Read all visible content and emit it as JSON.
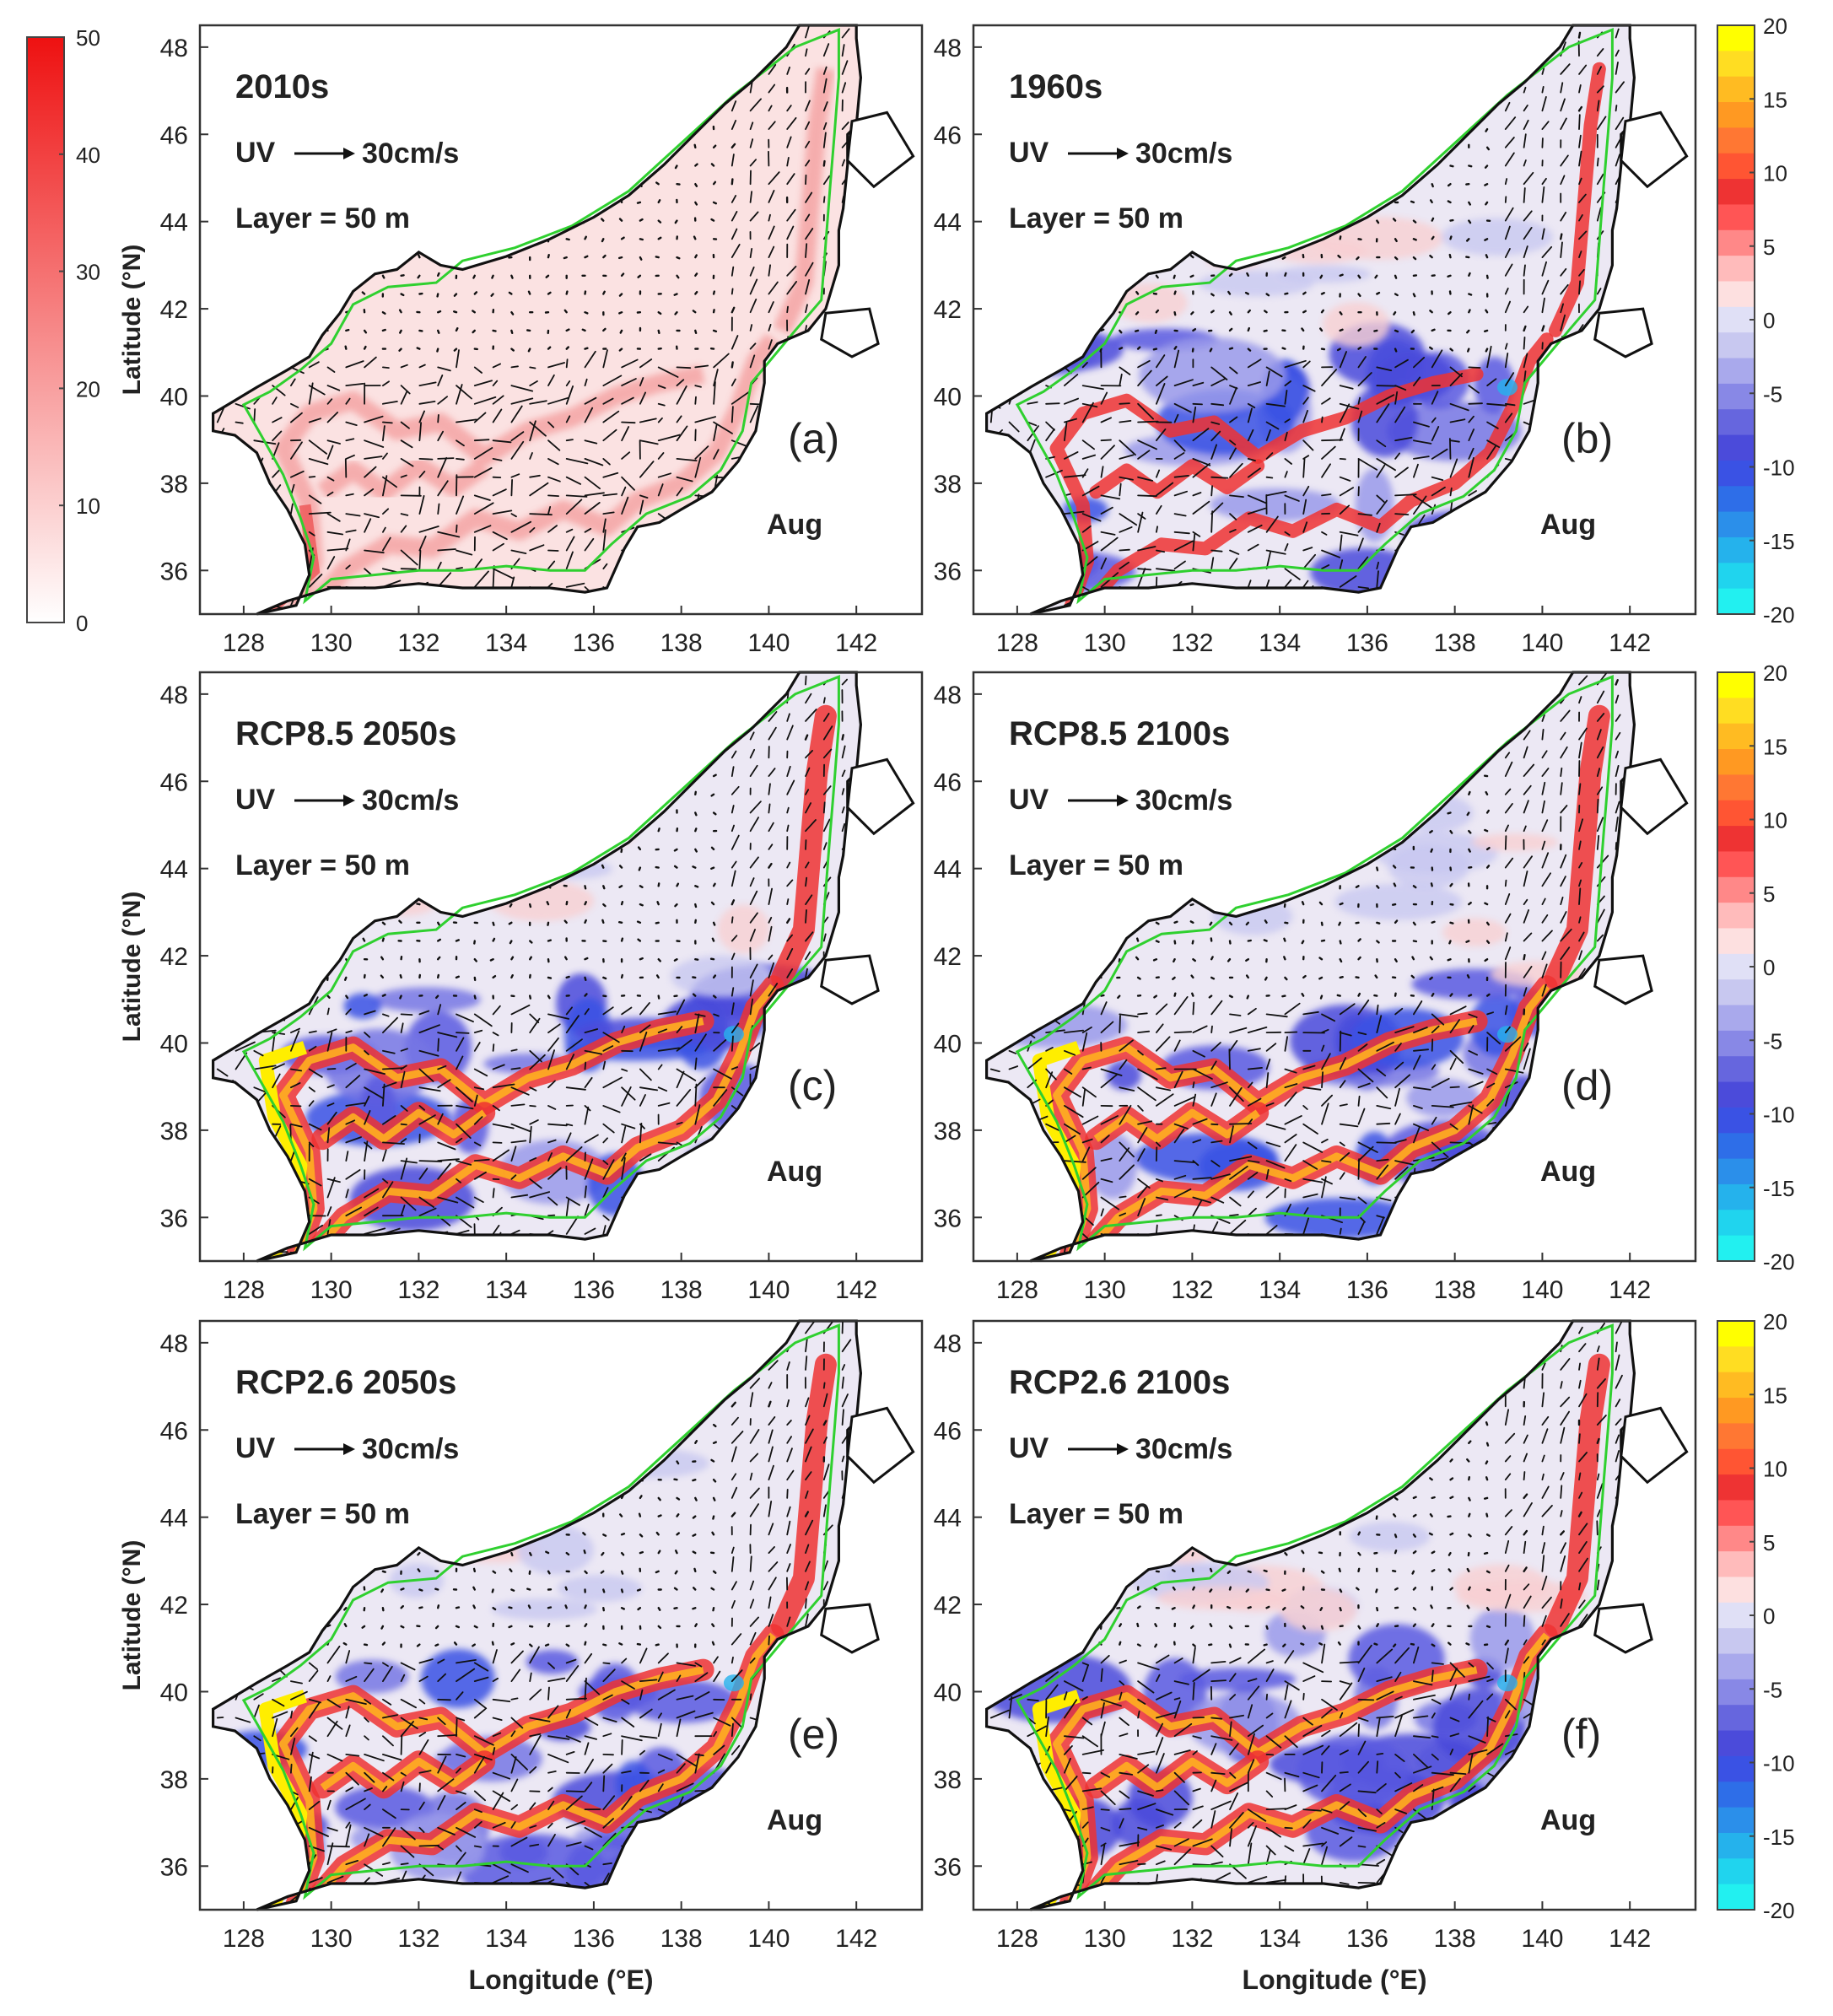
{
  "figure": {
    "panels": [
      {
        "id": "a",
        "title": "2010s",
        "scale_label": "UV",
        "scale_value": "30cm/s",
        "layer": "Layer = 50 m",
        "tag": "(a)",
        "month": "Aug",
        "kind": "speed"
      },
      {
        "id": "b",
        "title": "1960s",
        "scale_label": "UV",
        "scale_value": "30cm/s",
        "layer": "Layer = 50 m",
        "tag": "(b)",
        "month": "Aug",
        "kind": "diff"
      },
      {
        "id": "c",
        "title": "RCP8.5 2050s",
        "scale_label": "UV",
        "scale_value": "30cm/s",
        "layer": "Layer = 50 m",
        "tag": "(c)",
        "month": "Aug",
        "kind": "diff"
      },
      {
        "id": "d",
        "title": "RCP8.5 2100s",
        "scale_label": "UV",
        "scale_value": "30cm/s",
        "layer": "Layer = 50 m",
        "tag": "(d)",
        "month": "Aug",
        "kind": "diff"
      },
      {
        "id": "e",
        "title": "RCP2.6 2050s",
        "scale_label": "UV",
        "scale_value": "30cm/s",
        "layer": "Layer = 50 m",
        "tag": "(e)",
        "month": "Aug",
        "kind": "diff"
      },
      {
        "id": "f",
        "title": "RCP2.6 2100s",
        "scale_label": "UV",
        "scale_value": "30cm/s",
        "layer": "Layer = 50 m",
        "tag": "(f)",
        "month": "Aug",
        "kind": "diff"
      }
    ],
    "xlabel": "Longitude (°E)",
    "ylabel": "Latitude (°N)",
    "x_ticks": [
      "128",
      "130",
      "132",
      "134",
      "136",
      "138",
      "140",
      "142"
    ],
    "y_ticks": [
      "48",
      "46",
      "44",
      "42",
      "40",
      "38",
      "36"
    ],
    "speed_colorbar": {
      "ticks": [
        "50",
        "40",
        "30",
        "20",
        "10",
        "0"
      ],
      "range": [
        0,
        50
      ],
      "low_color": "#ffffff",
      "high_color": "#ee1111"
    },
    "diff_colorbar": {
      "ticks": [
        "20",
        "15",
        "10",
        "5",
        "0",
        "-5",
        "-10",
        "-15",
        "-20"
      ],
      "range": [
        -20,
        20
      ],
      "colors": [
        "#ffff00",
        "#ffdd22",
        "#ffbb22",
        "#ff9922",
        "#ff7733",
        "#ff5533",
        "#ee3333",
        "#ff5555",
        "#ff8888",
        "#ffbbbb",
        "#fde0e0",
        "#e0e0f6",
        "#c8c8f0",
        "#a9a9ec",
        "#8888e6",
        "#6666de",
        "#4b4bda",
        "#3a52e4",
        "#2e6ee8",
        "#2b8fea",
        "#25b2ec",
        "#20d4ee",
        "#22f0f0"
      ]
    }
  },
  "chart_data": {
    "type": "heatmap",
    "description_units": {
      "x": "Longitude (°E)",
      "y": "Latitude (°N)",
      "speed": "cm/s",
      "difference": "cm/s"
    },
    "xlim": [
      127,
      143.5
    ],
    "ylim": [
      35,
      48.5
    ],
    "x_ticks": [
      128,
      130,
      132,
      134,
      136,
      138,
      140,
      142
    ],
    "y_ticks": [
      36,
      38,
      40,
      42,
      44,
      46,
      48
    ],
    "speed_colorbar_range": [
      0,
      50
    ],
    "difference_colorbar_range": [
      -20,
      20
    ],
    "panels": [
      "2010s",
      "1960s",
      "RCP8.5 2050s",
      "RCP8.5 2100s",
      "RCP2.6 2050s",
      "RCP2.6 2100s"
    ],
    "layer_depth_m": 50,
    "month": "Aug",
    "vector_scale": "30cm/s",
    "coastline_lonlat": [
      [
        128.3,
        35.0
      ],
      [
        129.0,
        35.3
      ],
      [
        130.0,
        35.6
      ],
      [
        131.0,
        35.6
      ],
      [
        132.0,
        35.7
      ],
      [
        133.0,
        35.6
      ],
      [
        134.0,
        35.6
      ],
      [
        135.0,
        35.6
      ],
      [
        135.8,
        35.5
      ],
      [
        136.3,
        35.6
      ],
      [
        136.7,
        36.5
      ],
      [
        137.0,
        37.0
      ],
      [
        137.5,
        37.1
      ],
      [
        138.0,
        37.4
      ],
      [
        138.7,
        37.8
      ],
      [
        139.3,
        38.5
      ],
      [
        139.7,
        39.2
      ],
      [
        139.9,
        40.3
      ],
      [
        139.9,
        40.8
      ],
      [
        140.2,
        41.2
      ],
      [
        140.9,
        41.5
      ],
      [
        141.3,
        42.0
      ],
      [
        141.6,
        43.0
      ],
      [
        141.6,
        43.8
      ],
      [
        141.7,
        44.3
      ],
      [
        141.8,
        45.3
      ],
      [
        141.8,
        46.0
      ],
      [
        142.0,
        46.2
      ],
      [
        142.1,
        47.3
      ],
      [
        142.0,
        48.2
      ],
      [
        142.0,
        48.5
      ],
      [
        140.7,
        48.5
      ],
      [
        140.4,
        48.0
      ],
      [
        139.6,
        47.2
      ],
      [
        139.0,
        46.7
      ],
      [
        138.3,
        46.0
      ],
      [
        137.6,
        45.3
      ],
      [
        136.8,
        44.6
      ],
      [
        136.0,
        44.1
      ],
      [
        135.0,
        43.6
      ],
      [
        134.0,
        43.2
      ],
      [
        133.0,
        42.9
      ],
      [
        132.5,
        43.0
      ],
      [
        132.0,
        43.3
      ],
      [
        131.5,
        42.9
      ],
      [
        131.0,
        42.8
      ],
      [
        130.5,
        42.4
      ],
      [
        130.2,
        41.9
      ],
      [
        129.8,
        41.4
      ],
      [
        129.5,
        40.9
      ],
      [
        129.0,
        40.6
      ],
      [
        128.3,
        40.2
      ],
      [
        127.8,
        39.9
      ],
      [
        127.3,
        39.6
      ],
      [
        127.3,
        39.2
      ],
      [
        127.8,
        39.1
      ],
      [
        128.3,
        38.7
      ],
      [
        128.6,
        38.0
      ],
      [
        129.0,
        37.4
      ],
      [
        129.4,
        36.6
      ],
      [
        129.5,
        35.9
      ],
      [
        129.2,
        35.2
      ],
      [
        128.3,
        35.0
      ]
    ],
    "shelf_contour_lonlat": [
      [
        129.4,
        35.3
      ],
      [
        130.0,
        35.8
      ],
      [
        131.0,
        35.9
      ],
      [
        132.0,
        36.0
      ],
      [
        133.0,
        36.0
      ],
      [
        134.0,
        36.1
      ],
      [
        135.0,
        36.0
      ],
      [
        135.8,
        36.0
      ],
      [
        136.4,
        36.6
      ],
      [
        137.2,
        37.3
      ],
      [
        138.2,
        37.7
      ],
      [
        138.9,
        38.3
      ],
      [
        139.4,
        39.2
      ],
      [
        139.6,
        40.3
      ],
      [
        140.6,
        41.5
      ],
      [
        141.2,
        42.2
      ],
      [
        141.3,
        43.5
      ],
      [
        141.4,
        44.8
      ],
      [
        141.5,
        46.0
      ],
      [
        141.6,
        47.3
      ],
      [
        141.6,
        48.4
      ],
      [
        140.6,
        48.0
      ],
      [
        139.2,
        46.9
      ],
      [
        138.0,
        45.8
      ],
      [
        136.8,
        44.7
      ],
      [
        135.5,
        43.9
      ],
      [
        134.2,
        43.4
      ],
      [
        133.0,
        43.1
      ],
      [
        132.4,
        42.6
      ],
      [
        131.3,
        42.5
      ],
      [
        130.5,
        42.1
      ],
      [
        130.0,
        41.2
      ],
      [
        129.3,
        40.6
      ],
      [
        128.6,
        40.1
      ],
      [
        128.0,
        39.8
      ],
      [
        128.4,
        39.1
      ],
      [
        128.9,
        38.2
      ],
      [
        129.3,
        37.2
      ],
      [
        129.6,
        36.3
      ],
      [
        129.4,
        35.3
      ]
    ],
    "current_paths_lonlat": [
      [
        [
          129.2,
          35.1
        ],
        [
          129.6,
          36.2
        ],
        [
          129.5,
          37.5
        ],
        [
          128.9,
          38.8
        ],
        [
          129.5,
          39.6
        ],
        [
          130.5,
          39.9
        ],
        [
          131.5,
          39.2
        ],
        [
          132.5,
          39.4
        ],
        [
          133.5,
          38.6
        ],
        [
          134.5,
          39.2
        ],
        [
          135.5,
          39.5
        ],
        [
          136.5,
          40.0
        ],
        [
          137.5,
          40.3
        ],
        [
          138.5,
          40.5
        ]
      ],
      [
        [
          129.6,
          35.2
        ],
        [
          130.3,
          36.0
        ],
        [
          131.3,
          36.6
        ],
        [
          132.3,
          36.5
        ],
        [
          133.3,
          37.2
        ],
        [
          134.3,
          36.9
        ],
        [
          135.3,
          37.4
        ],
        [
          136.3,
          37.0
        ],
        [
          137.0,
          37.6
        ],
        [
          138.0,
          38.0
        ],
        [
          138.8,
          38.7
        ],
        [
          139.3,
          39.7
        ],
        [
          139.7,
          40.8
        ],
        [
          140.1,
          41.3
        ]
      ],
      [
        [
          140.3,
          41.5
        ],
        [
          140.8,
          42.6
        ],
        [
          140.9,
          43.8
        ],
        [
          141.0,
          45.0
        ],
        [
          141.1,
          46.2
        ],
        [
          141.3,
          47.5
        ]
      ],
      [
        [
          129.8,
          37.8
        ],
        [
          130.5,
          38.3
        ],
        [
          131.2,
          37.8
        ],
        [
          132.0,
          38.4
        ],
        [
          132.8,
          37.9
        ],
        [
          133.5,
          38.4
        ]
      ]
    ],
    "vector_field": "synthetic 0.4° grid of velocity arrows inside the basin"
  }
}
